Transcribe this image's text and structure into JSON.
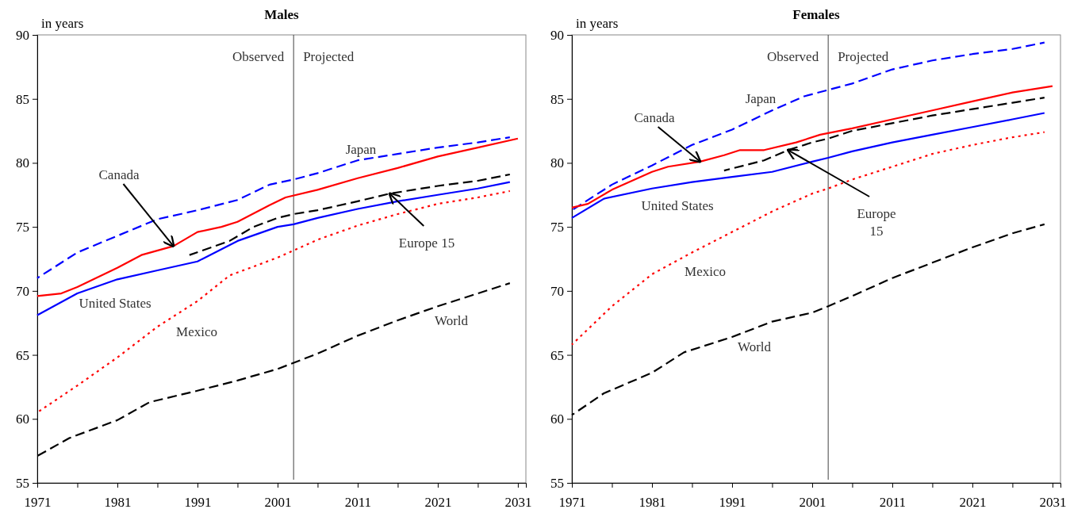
{
  "chart_data": [
    {
      "type": "line",
      "title": "Males",
      "ylabel": "in years",
      "xlim": [
        1971,
        2032
      ],
      "ylim": [
        55,
        90
      ],
      "xticks": [
        1971,
        {
          "value": 1976,
          "label": null
        },
        1981,
        {
          "value": 1986,
          "label": null
        },
        1991,
        {
          "value": 1996,
          "label": null
        },
        2001,
        {
          "value": 2006,
          "label": null
        },
        2011,
        {
          "value": 2016,
          "label": null
        },
        2021,
        {
          "value": 2026,
          "label": null
        },
        2031
      ],
      "yticks": [
        55,
        60,
        65,
        70,
        75,
        80,
        85,
        90
      ],
      "grid": false,
      "ref_lines": [
        {
          "axis": "x",
          "value": 2003,
          "color": "#404040"
        }
      ],
      "series": [
        {
          "name": "Japan",
          "color": "#0000ff",
          "line_style": "dashed",
          "x": [
            1971,
            1976,
            1981,
            1986,
            1991,
            1996,
            2000,
            2003,
            2006,
            2011,
            2016,
            2021,
            2026,
            2030
          ],
          "values": [
            71.0,
            73.0,
            74.3,
            75.6,
            76.3,
            77.1,
            78.3,
            78.7,
            79.2,
            80.2,
            80.7,
            81.2,
            81.6,
            82.0
          ]
        },
        {
          "color": "#ff0000",
          "line_style": "solid",
          "x": [
            1971,
            1974,
            1976,
            1981,
            1984,
            1988,
            1991,
            1994,
            1996,
            2000,
            2002,
            2006,
            2011,
            2016,
            2021,
            2026,
            2031
          ],
          "values": [
            69.6,
            69.8,
            70.3,
            71.8,
            72.8,
            73.5,
            74.6,
            75.0,
            75.4,
            76.7,
            77.3,
            77.9,
            78.8,
            79.6,
            80.5,
            81.2,
            81.9
          ]
        },
        {
          "name": "United States",
          "color": "#0000ff",
          "line_style": "solid",
          "x": [
            1971,
            1976,
            1981,
            1986,
            1991,
            1996,
            2001,
            2003,
            2006,
            2011,
            2016,
            2021,
            2026,
            2030
          ],
          "values": [
            68.1,
            69.8,
            70.9,
            71.6,
            72.3,
            73.9,
            75.0,
            75.2,
            75.7,
            76.4,
            77.0,
            77.5,
            78.0,
            78.5
          ]
        },
        {
          "color": "#000000",
          "line_style": "dashed",
          "x": [
            1990,
            1995,
            1998,
            2001,
            2003,
            2006,
            2011,
            2015,
            2021,
            2026,
            2030
          ],
          "values": [
            72.8,
            73.9,
            75.0,
            75.7,
            76.0,
            76.3,
            77.0,
            77.6,
            78.2,
            78.6,
            79.1
          ]
        },
        {
          "name": "Mexico",
          "color": "#ff0000",
          "line_style": "dotted",
          "x": [
            1971,
            1976,
            1981,
            1986,
            1991,
            1995,
            2001,
            2006,
            2011,
            2016,
            2021,
            2026,
            2030
          ],
          "values": [
            60.5,
            62.6,
            64.8,
            67.2,
            69.2,
            71.2,
            72.6,
            74.0,
            75.1,
            76.0,
            76.8,
            77.3,
            77.8
          ]
        },
        {
          "name": "World",
          "color": "#000000",
          "line_style": "dashed",
          "x": [
            1971,
            1975,
            1981,
            1985,
            1991,
            1996,
            2001,
            2006,
            2011,
            2016,
            2021,
            2026,
            2030
          ],
          "values": [
            57.1,
            58.5,
            59.9,
            61.3,
            62.2,
            63.0,
            63.9,
            65.1,
            66.5,
            67.7,
            68.8,
            69.8,
            70.6
          ]
        }
      ],
      "annotations": [
        "Observed",
        "Projected",
        {
          "text": "Canada",
          "x": 1988,
          "y": 73.5
        },
        {
          "text": "Europe 15",
          "x": 2015,
          "y": 77.6
        }
      ]
    },
    {
      "type": "line",
      "title": "Females",
      "ylabel": "in years",
      "xlim": [
        1971,
        2032
      ],
      "ylim": [
        55,
        90
      ],
      "xticks": [
        1971,
        {
          "value": 1976,
          "label": null
        },
        1981,
        {
          "value": 1986,
          "label": null
        },
        1991,
        {
          "value": 1996,
          "label": null
        },
        2001,
        {
          "value": 2006,
          "label": null
        },
        2011,
        {
          "value": 2016,
          "label": null
        },
        2021,
        {
          "value": 2026,
          "label": null
        },
        2031
      ],
      "yticks": [
        55,
        60,
        65,
        70,
        75,
        80,
        85,
        90
      ],
      "grid": false,
      "ref_lines": [
        {
          "axis": "x",
          "value": 2003,
          "color": "#404040"
        }
      ],
      "series": [
        {
          "name": "Japan",
          "color": "#0000ff",
          "line_style": "dashed",
          "x": [
            1971,
            1976,
            1981,
            1986,
            1991,
            1996,
            2000,
            2003,
            2006,
            2011,
            2016,
            2021,
            2026,
            2030
          ],
          "values": [
            76.3,
            78.3,
            79.8,
            81.4,
            82.6,
            84.1,
            85.2,
            85.7,
            86.2,
            87.3,
            88.0,
            88.5,
            88.9,
            89.4
          ]
        },
        {
          "color": "#ff0000",
          "line_style": "solid",
          "x": [
            1971,
            1973,
            1976,
            1981,
            1983,
            1987,
            1990,
            1992,
            1995,
            1999,
            2002,
            2006,
            2011,
            2016,
            2021,
            2026,
            2031
          ],
          "values": [
            76.5,
            76.8,
            77.9,
            79.3,
            79.7,
            80.1,
            80.6,
            81.0,
            81.0,
            81.6,
            82.2,
            82.7,
            83.4,
            84.1,
            84.8,
            85.5,
            86.0
          ]
        },
        {
          "name": "United States",
          "color": "#0000ff",
          "line_style": "solid",
          "x": [
            1971,
            1975,
            1981,
            1986,
            1991,
            1996,
            2001,
            2003,
            2006,
            2011,
            2016,
            2021,
            2026,
            2030
          ],
          "values": [
            75.7,
            77.2,
            78.0,
            78.5,
            78.9,
            79.3,
            80.1,
            80.4,
            80.9,
            81.6,
            82.2,
            82.8,
            83.4,
            83.9
          ]
        },
        {
          "color": "#000000",
          "line_style": "dashed",
          "x": [
            1990,
            1995,
            1998,
            2001,
            2003,
            2006,
            2011,
            2016,
            2021,
            2026,
            2030
          ],
          "values": [
            79.4,
            80.2,
            81.0,
            81.6,
            81.9,
            82.5,
            83.1,
            83.7,
            84.2,
            84.7,
            85.1
          ]
        },
        {
          "name": "Mexico",
          "color": "#ff0000",
          "line_style": "dotted",
          "x": [
            1971,
            1976,
            1981,
            1986,
            1991,
            1996,
            2001,
            2003,
            2006,
            2011,
            2016,
            2021,
            2026,
            2030
          ],
          "values": [
            65.8,
            68.8,
            71.3,
            73.0,
            74.6,
            76.2,
            77.6,
            78.0,
            78.7,
            79.7,
            80.7,
            81.4,
            82.0,
            82.4
          ]
        },
        {
          "name": "World",
          "color": "#000000",
          "line_style": "dashed",
          "x": [
            1971,
            1975,
            1981,
            1985,
            1991,
            1996,
            2001,
            2003,
            2006,
            2011,
            2016,
            2021,
            2026,
            2030
          ],
          "values": [
            60.3,
            62.0,
            63.6,
            65.2,
            66.4,
            67.6,
            68.3,
            68.8,
            69.6,
            71.0,
            72.2,
            73.4,
            74.5,
            75.2
          ]
        }
      ],
      "annotations": [
        "Observed",
        "Projected",
        {
          "text": "Canada",
          "x": 1987,
          "y": 80.1
        },
        {
          "text": "Europe\n15",
          "x": 1998,
          "y": 81.0
        }
      ]
    }
  ]
}
